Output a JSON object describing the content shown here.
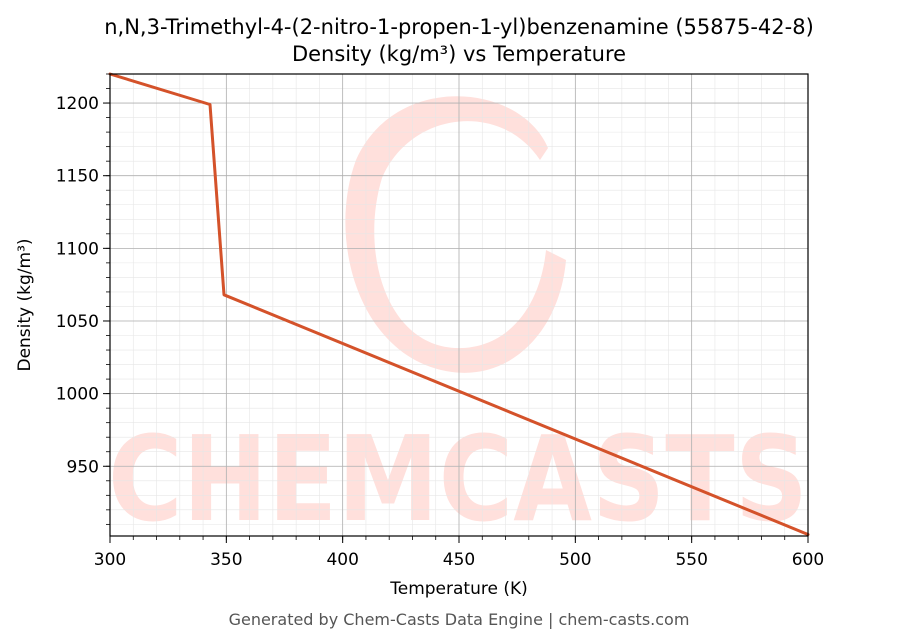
{
  "chart_data": {
    "type": "line",
    "title": "n,N,3-Trimethyl-4-(2-nitro-1-propen-1-yl)benzenamine (55875-42-8)",
    "subtitle": "Density (kg/m³) vs Temperature",
    "xlabel": "Temperature (K)",
    "ylabel": "Density (kg/m³)",
    "xlim": [
      300,
      600
    ],
    "ylim": [
      902,
      1220
    ],
    "xticks": [
      300,
      350,
      400,
      450,
      500,
      550,
      600
    ],
    "yticks": [
      950,
      1000,
      1050,
      1100,
      1150,
      1200
    ],
    "grid": true,
    "series": [
      {
        "color": "#d4522a",
        "x": [
          300,
          343,
          349,
          600
        ],
        "y": [
          1220,
          1199,
          1068,
          903
        ]
      }
    ]
  },
  "watermark": {
    "text": "CHEMCASTS",
    "color": "#ffe0dc"
  },
  "footer": "Generated by Chem-Casts Data Engine | chem-casts.com"
}
